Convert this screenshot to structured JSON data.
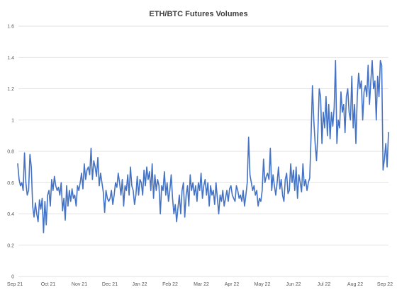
{
  "chart_data": {
    "type": "line",
    "title": "ETH/BTC Futures Volumes",
    "xlabel": "",
    "ylabel": "",
    "ylim": [
      0,
      1.6
    ],
    "y_ticks": [
      "0",
      "0.2",
      "0.4",
      "0.6",
      "0.8",
      "1",
      "1.2",
      "1.4",
      "1.6"
    ],
    "x_tick_labels": [
      "Sep 21",
      "Oct 21",
      "Nov 21",
      "Dec 21",
      "Jan 22",
      "Feb 22",
      "Mar 22",
      "Apr 22",
      "May 22",
      "Jun 22",
      "Jul 22",
      "Aug 22",
      "Sep 22"
    ],
    "grid": true,
    "legend": "none",
    "color": "#4472c4",
    "series": [
      {
        "values": [
          0.72,
          0.62,
          0.58,
          0.6,
          0.55,
          0.79,
          0.6,
          0.52,
          0.55,
          0.78,
          0.7,
          0.45,
          0.38,
          0.47,
          0.4,
          0.35,
          0.49,
          0.43,
          0.5,
          0.28,
          0.48,
          0.33,
          0.52,
          0.55,
          0.45,
          0.62,
          0.55,
          0.64,
          0.58,
          0.55,
          0.57,
          0.52,
          0.6,
          0.42,
          0.5,
          0.36,
          0.58,
          0.45,
          0.55,
          0.48,
          0.56,
          0.5,
          0.52,
          0.45,
          0.58,
          0.55,
          0.6,
          0.66,
          0.56,
          0.72,
          0.62,
          0.68,
          0.7,
          0.65,
          0.82,
          0.62,
          0.74,
          0.7,
          0.64,
          0.76,
          0.58,
          0.66,
          0.6,
          0.54,
          0.41,
          0.55,
          0.5,
          0.48,
          0.5,
          0.55,
          0.46,
          0.52,
          0.6,
          0.57,
          0.66,
          0.6,
          0.52,
          0.62,
          0.45,
          0.58,
          0.55,
          0.65,
          0.52,
          0.7,
          0.58,
          0.55,
          0.46,
          0.52,
          0.64,
          0.52,
          0.62,
          0.6,
          0.52,
          0.68,
          0.58,
          0.7,
          0.62,
          0.67,
          0.55,
          0.72,
          0.5,
          0.65,
          0.55,
          0.62,
          0.58,
          0.4,
          0.58,
          0.55,
          0.67,
          0.52,
          0.6,
          0.48,
          0.55,
          0.65,
          0.5,
          0.4,
          0.46,
          0.35,
          0.44,
          0.52,
          0.4,
          0.55,
          0.6,
          0.38,
          0.52,
          0.58,
          0.45,
          0.65,
          0.55,
          0.6,
          0.52,
          0.58,
          0.48,
          0.6,
          0.55,
          0.66,
          0.5,
          0.58,
          0.62,
          0.52,
          0.6,
          0.45,
          0.58,
          0.52,
          0.55,
          0.46,
          0.6,
          0.5,
          0.4,
          0.52,
          0.48,
          0.55,
          0.45,
          0.5,
          0.55,
          0.48,
          0.56,
          0.58,
          0.52,
          0.5,
          0.48,
          0.58,
          0.55,
          0.5,
          0.52,
          0.48,
          0.55,
          0.45,
          0.52,
          0.6,
          0.89,
          0.65,
          0.6,
          0.55,
          0.58,
          0.52,
          0.55,
          0.45,
          0.5,
          0.48,
          0.55,
          0.75,
          0.6,
          0.64,
          0.66,
          0.62,
          0.82,
          0.55,
          0.65,
          0.58,
          0.52,
          0.6,
          0.7,
          0.56,
          0.62,
          0.52,
          0.48,
          0.62,
          0.66,
          0.53,
          0.55,
          0.72,
          0.6,
          0.68,
          0.55,
          0.7,
          0.5,
          0.65,
          0.6,
          0.54,
          0.72,
          0.58,
          0.62,
          0.55,
          0.6,
          0.63,
          0.9,
          1.22,
          1.0,
          0.85,
          0.74,
          0.92,
          1.2,
          1.15,
          0.85,
          1.05,
          0.95,
          1.15,
          0.9,
          1.1,
          0.88,
          1.05,
          0.96,
          1.08,
          1.38,
          0.85,
          1.0,
          0.95,
          1.18,
          1.05,
          1.1,
          0.92,
          1.15,
          1.2,
          1.05,
          1.0,
          1.28,
          0.95,
          1.1,
          0.85,
          1.15,
          1.3,
          1.2,
          1.25,
          1.0,
          1.18,
          1.22,
          1.15,
          1.35,
          1.1,
          1.25,
          1.38,
          1.2,
          1.25,
          1.0,
          1.28,
          1.15,
          1.38,
          1.35,
          0.68,
          0.75,
          0.85,
          0.7,
          0.92
        ]
      }
    ]
  }
}
